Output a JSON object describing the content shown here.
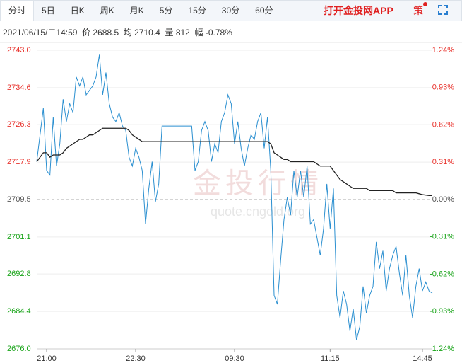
{
  "tabs": [
    "分时",
    "5日",
    "日K",
    "周K",
    "月K",
    "5分",
    "15分",
    "30分",
    "60分"
  ],
  "app_link": "打开金投网APP",
  "strategy": "策",
  "info": "2021/06/15/二14:59  价 2688.5  均 2710.4  量 812  幅 -0.78%",
  "watermark": {
    "brand": "金投行情",
    "url": "quote.cngold.org"
  },
  "chart_data": {
    "type": "line",
    "x": [
      0,
      1,
      2,
      3,
      4,
      5,
      6,
      7,
      8,
      9,
      10,
      11,
      12,
      13,
      14,
      15,
      16,
      17,
      18,
      19,
      20,
      21,
      22,
      23,
      24,
      25,
      26,
      27,
      28,
      29,
      30,
      31,
      32,
      33,
      34,
      35,
      36,
      37,
      38,
      39,
      40,
      41,
      42,
      43,
      44,
      45,
      46,
      47,
      48,
      49,
      50,
      51,
      52,
      53,
      54,
      55,
      56,
      57,
      58,
      59,
      60,
      61,
      62,
      63,
      64,
      65,
      66,
      67,
      68,
      69,
      70,
      71,
      72,
      73,
      74,
      75,
      76,
      77,
      78,
      79,
      80,
      81,
      82,
      83,
      84,
      85,
      86,
      87,
      88,
      89,
      90,
      91,
      92,
      93,
      94,
      95,
      96,
      97,
      98,
      99,
      100,
      101,
      102,
      103,
      104,
      105,
      106,
      107,
      108,
      109,
      110,
      111,
      112,
      113,
      114,
      115,
      116,
      117,
      118,
      119,
      120
    ],
    "xlim": [
      0,
      120
    ],
    "xticks": [
      {
        "value": 3,
        "label": "21:00"
      },
      {
        "value": 30,
        "label": "22:30"
      },
      {
        "value": 60,
        "label": "09:30"
      },
      {
        "value": 89,
        "label": "11:15"
      },
      {
        "value": 117,
        "label": "14:45"
      }
    ],
    "ylim": [
      2676,
      2743
    ],
    "yticks": [
      {
        "value": 2676,
        "label": "2676.0"
      },
      {
        "value": 2684.4,
        "label": "2684.4"
      },
      {
        "value": 2692.8,
        "label": "2692.8"
      },
      {
        "value": 2701.1,
        "label": "2701.1"
      },
      {
        "value": 2709.5,
        "label": "2709.5"
      },
      {
        "value": 2717.9,
        "label": "2717.9"
      },
      {
        "value": 2726.3,
        "label": "2726.3"
      },
      {
        "value": 2734.6,
        "label": "2734.6"
      },
      {
        "value": 2743,
        "label": "2743.0"
      }
    ],
    "y2lim": [
      -1.24,
      1.24
    ],
    "y2ticks": [
      {
        "value": -1.24,
        "label": "-1.24%"
      },
      {
        "value": -0.93,
        "label": "-0.93%"
      },
      {
        "value": -0.62,
        "label": "-0.62%"
      },
      {
        "value": -0.31,
        "label": "-0.31%"
      },
      {
        "value": 0,
        "label": "0.00%"
      },
      {
        "value": 0.31,
        "label": "0.31%"
      },
      {
        "value": 0.62,
        "label": "0.62%"
      },
      {
        "value": 0.93,
        "label": "0.93%"
      },
      {
        "value": 1.24,
        "label": "1.24%"
      }
    ],
    "up_color": "#e8322c",
    "down_color": "#17a317",
    "flat_color": "#555555",
    "grid": true,
    "reference_dashed": true,
    "series": [
      {
        "name": "价",
        "color": "#2a8fd0",
        "values": [
          2718,
          2724,
          2730,
          2716,
          2715,
          2728,
          2717,
          2722,
          2732,
          2727,
          2731,
          2729,
          2737,
          2735,
          2737,
          2733,
          2734,
          2735,
          2737,
          2742,
          2733,
          2738,
          2731,
          2728,
          2727,
          2729,
          2726,
          2725,
          2719,
          2717,
          2721,
          2719,
          2716,
          2704,
          2712,
          2718,
          2709,
          2713,
          2726,
          2726,
          2726,
          2726,
          2726,
          2726,
          2726,
          2726,
          2726,
          2726,
          2716,
          2718,
          2725,
          2727,
          2725,
          2718,
          2722,
          2720,
          2727,
          2729,
          2733,
          2731,
          2722,
          2727,
          2721,
          2717,
          2721,
          2724,
          2723,
          2727,
          2729,
          2721,
          2728,
          2716,
          2688,
          2686,
          2696,
          2705,
          2710,
          2706,
          2716,
          2710,
          2716,
          2710,
          2717,
          2704,
          2705,
          2701,
          2697,
          2703,
          2713,
          2703,
          2712,
          2688,
          2683,
          2689,
          2686,
          2680,
          2685,
          2678,
          2681,
          2690,
          2684,
          2688,
          2690,
          2700,
          2694,
          2698,
          2689,
          2694,
          2697,
          2699,
          2693,
          2688,
          2697,
          2688,
          2683,
          2690,
          2694,
          2689,
          2691,
          2689,
          2688.5
        ]
      },
      {
        "name": "均",
        "color": "#222222",
        "values": [
          2718,
          2719,
          2720,
          2720,
          2719,
          2719.5,
          2719.5,
          2719.5,
          2720,
          2721,
          2721.5,
          2722,
          2722.5,
          2723,
          2723,
          2723.5,
          2724,
          2724,
          2724.5,
          2725,
          2725.5,
          2725.5,
          2725.5,
          2725.5,
          2725.5,
          2725.5,
          2725.5,
          2725.5,
          2725,
          2724,
          2723.5,
          2723,
          2722.5,
          2722.5,
          2722.5,
          2722.5,
          2722.5,
          2722.5,
          2722.5,
          2722.5,
          2722.5,
          2722.5,
          2722.5,
          2722.5,
          2722.5,
          2722.5,
          2722.5,
          2722.5,
          2722.5,
          2722.5,
          2722.5,
          2722.5,
          2722.5,
          2722.5,
          2722.5,
          2722.5,
          2722.5,
          2722.5,
          2722.5,
          2722.5,
          2722.5,
          2722.5,
          2722.5,
          2722.5,
          2722.5,
          2722.5,
          2722.5,
          2722.5,
          2722.5,
          2722.5,
          2722.5,
          2722,
          2720,
          2719.5,
          2719,
          2718.5,
          2718.5,
          2718,
          2718,
          2718,
          2718,
          2718,
          2718,
          2718,
          2718,
          2717.5,
          2717,
          2717,
          2717,
          2717,
          2716,
          2715,
          2714,
          2713.5,
          2713,
          2712.5,
          2712,
          2712,
          2712,
          2712,
          2712,
          2711.5,
          2711.5,
          2711.5,
          2711.5,
          2711.5,
          2711.5,
          2711.5,
          2711.5,
          2711,
          2711,
          2711,
          2711,
          2711,
          2711,
          2711,
          2710.8,
          2710.6,
          2710.5,
          2710.4,
          2710.4
        ]
      }
    ]
  }
}
